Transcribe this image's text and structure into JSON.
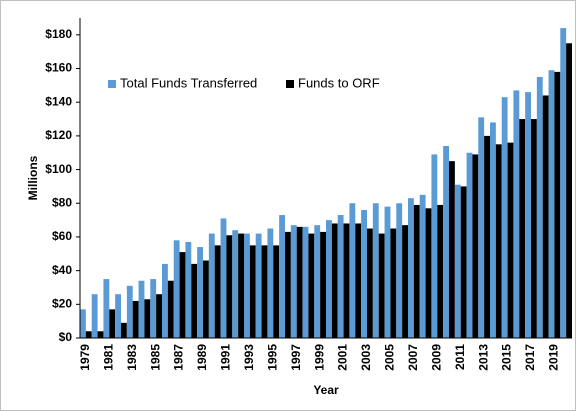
{
  "chart_data": {
    "type": "bar",
    "x_label": "Year",
    "y_label": "Millions",
    "categories": [
      "1979",
      null,
      "1981",
      null,
      "1983",
      null,
      "1985",
      null,
      "1987",
      null,
      "1989",
      null,
      "1991",
      null,
      "1993",
      null,
      "1995",
      null,
      "1997",
      null,
      "1999",
      null,
      "2001",
      null,
      "2003",
      null,
      "2005",
      null,
      "2007",
      null,
      "2009",
      null,
      "2011",
      null,
      "2013",
      null,
      "2015",
      null,
      "2017",
      null,
      "2019",
      null
    ],
    "series": [
      {
        "name": "Total Funds Transferred",
        "color": "#5b9bd5",
        "values": [
          17,
          26,
          35,
          26,
          31,
          34,
          35,
          44,
          58,
          57,
          54,
          62,
          71,
          64,
          62,
          62,
          65,
          73,
          67,
          66,
          67,
          70,
          73,
          80,
          76,
          80,
          78,
          80,
          83,
          85,
          109,
          114,
          91,
          110,
          131,
          128,
          143,
          147,
          146,
          155,
          159,
          184
        ]
      },
      {
        "name": "Funds to ORF",
        "color": "#000000",
        "values": [
          4,
          4,
          17,
          9,
          22,
          23,
          26,
          34,
          51,
          44,
          46,
          55,
          61,
          62,
          55,
          55,
          55,
          63,
          66,
          62,
          63,
          68,
          68,
          68,
          65,
          62,
          65,
          67,
          79,
          77,
          79,
          105,
          90,
          109,
          120,
          115,
          116,
          130,
          130,
          144,
          158,
          175
        ]
      }
    ],
    "ylim": [
      0,
      190
    ],
    "yticks": [
      {
        "value": 0,
        "label": "$0"
      },
      {
        "value": 20,
        "label": "$20"
      },
      {
        "value": 40,
        "label": "$40"
      },
      {
        "value": 60,
        "label": "$60"
      },
      {
        "value": 80,
        "label": "$80"
      },
      {
        "value": 100,
        "label": "$100"
      },
      {
        "value": 120,
        "label": "$120"
      },
      {
        "value": 140,
        "label": "$140"
      },
      {
        "value": 160,
        "label": "$160"
      },
      {
        "value": 180,
        "label": "$180"
      }
    ],
    "grid": false,
    "legend": "top-left"
  }
}
